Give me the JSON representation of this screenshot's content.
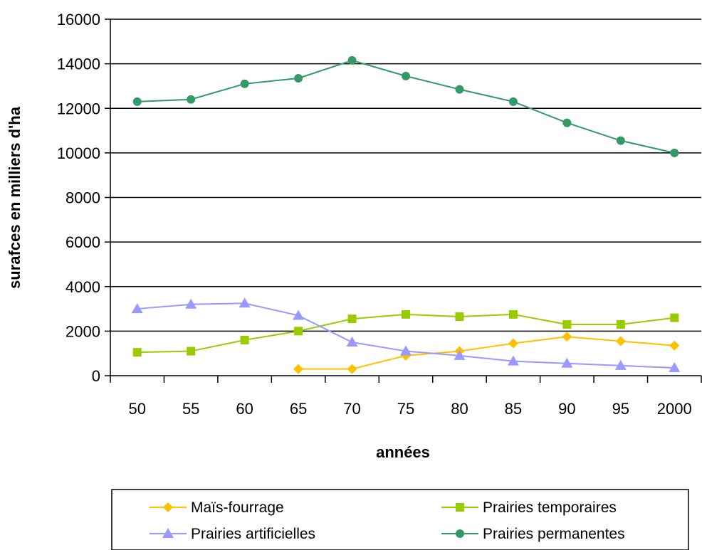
{
  "chart_data": {
    "type": "line",
    "title": "",
    "xlabel": "années",
    "ylabel": "surafces en milliers d'ha",
    "categories": [
      "50",
      "55",
      "60",
      "65",
      "70",
      "75",
      "80",
      "85",
      "90",
      "95",
      "2000"
    ],
    "ylim": [
      0,
      16000
    ],
    "yticks": [
      0,
      2000,
      4000,
      6000,
      8000,
      10000,
      12000,
      14000,
      16000
    ],
    "grid": "horizontal",
    "legend_position": "bottom",
    "series": [
      {
        "name": "Maïs-fourrage",
        "color": "#ffc000",
        "marker": "diamond",
        "values": [
          null,
          null,
          null,
          300,
          300,
          900,
          1100,
          1450,
          1750,
          1550,
          1350
        ]
      },
      {
        "name": "Prairies temporaires",
        "color": "#99cc00",
        "marker": "square",
        "values": [
          1050,
          1100,
          1600,
          2000,
          2550,
          2750,
          2650,
          2750,
          2300,
          2300,
          2600
        ]
      },
      {
        "name": "Prairies artificielles",
        "color": "#9999ff",
        "marker": "triangle",
        "values": [
          3000,
          3200,
          3250,
          2700,
          1500,
          1100,
          900,
          650,
          550,
          450,
          350
        ]
      },
      {
        "name": "Prairies permanentes",
        "color": "#339966",
        "marker": "circle",
        "values": [
          12300,
          12400,
          13100,
          13350,
          14150,
          13450,
          12850,
          12300,
          11350,
          10550,
          10000
        ]
      }
    ]
  }
}
